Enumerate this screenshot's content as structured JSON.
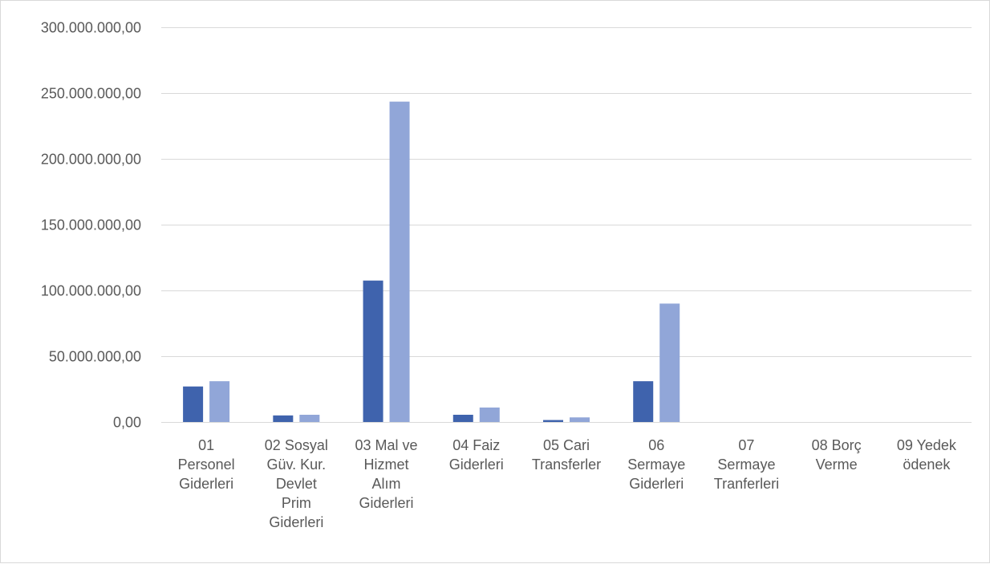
{
  "chart_data": {
    "type": "bar",
    "title": "",
    "xlabel": "",
    "ylabel": "",
    "ylim": [
      0,
      300000000
    ],
    "yticks": [
      0,
      50000000,
      100000000,
      150000000,
      200000000,
      250000000,
      300000000
    ],
    "ytick_labels": [
      "0,00",
      "50.000.000,00",
      "100.000.000,00",
      "150.000.000,00",
      "200.000.000,00",
      "250.000.000,00",
      "300.000.000,00"
    ],
    "grid": true,
    "legend": "none",
    "categories": [
      [
        "01",
        "Personel",
        "Giderleri"
      ],
      [
        "02 Sosyal",
        "Güv. Kur.",
        "Devlet",
        "Prim",
        "Giderleri"
      ],
      [
        "03 Mal ve",
        "Hizmet",
        "Alım",
        "Giderleri"
      ],
      [
        "04 Faiz",
        "Giderleri"
      ],
      [
        "05 Cari",
        "Transferler"
      ],
      [
        "06",
        "Sermaye",
        "Giderleri"
      ],
      [
        "07",
        "Sermaye",
        "Tranferleri"
      ],
      [
        "08 Borç",
        "Verme"
      ],
      [
        "09 Yedek",
        "ödenek"
      ]
    ],
    "series": [
      {
        "color": "#3f63ad",
        "values": [
          27000000,
          5000000,
          107500000,
          5500000,
          1500000,
          31000000,
          0,
          0,
          0
        ]
      },
      {
        "color": "#91a6d8",
        "values": [
          31000000,
          5500000,
          243500000,
          11000000,
          3500000,
          90000000,
          0,
          0,
          0
        ]
      }
    ]
  }
}
